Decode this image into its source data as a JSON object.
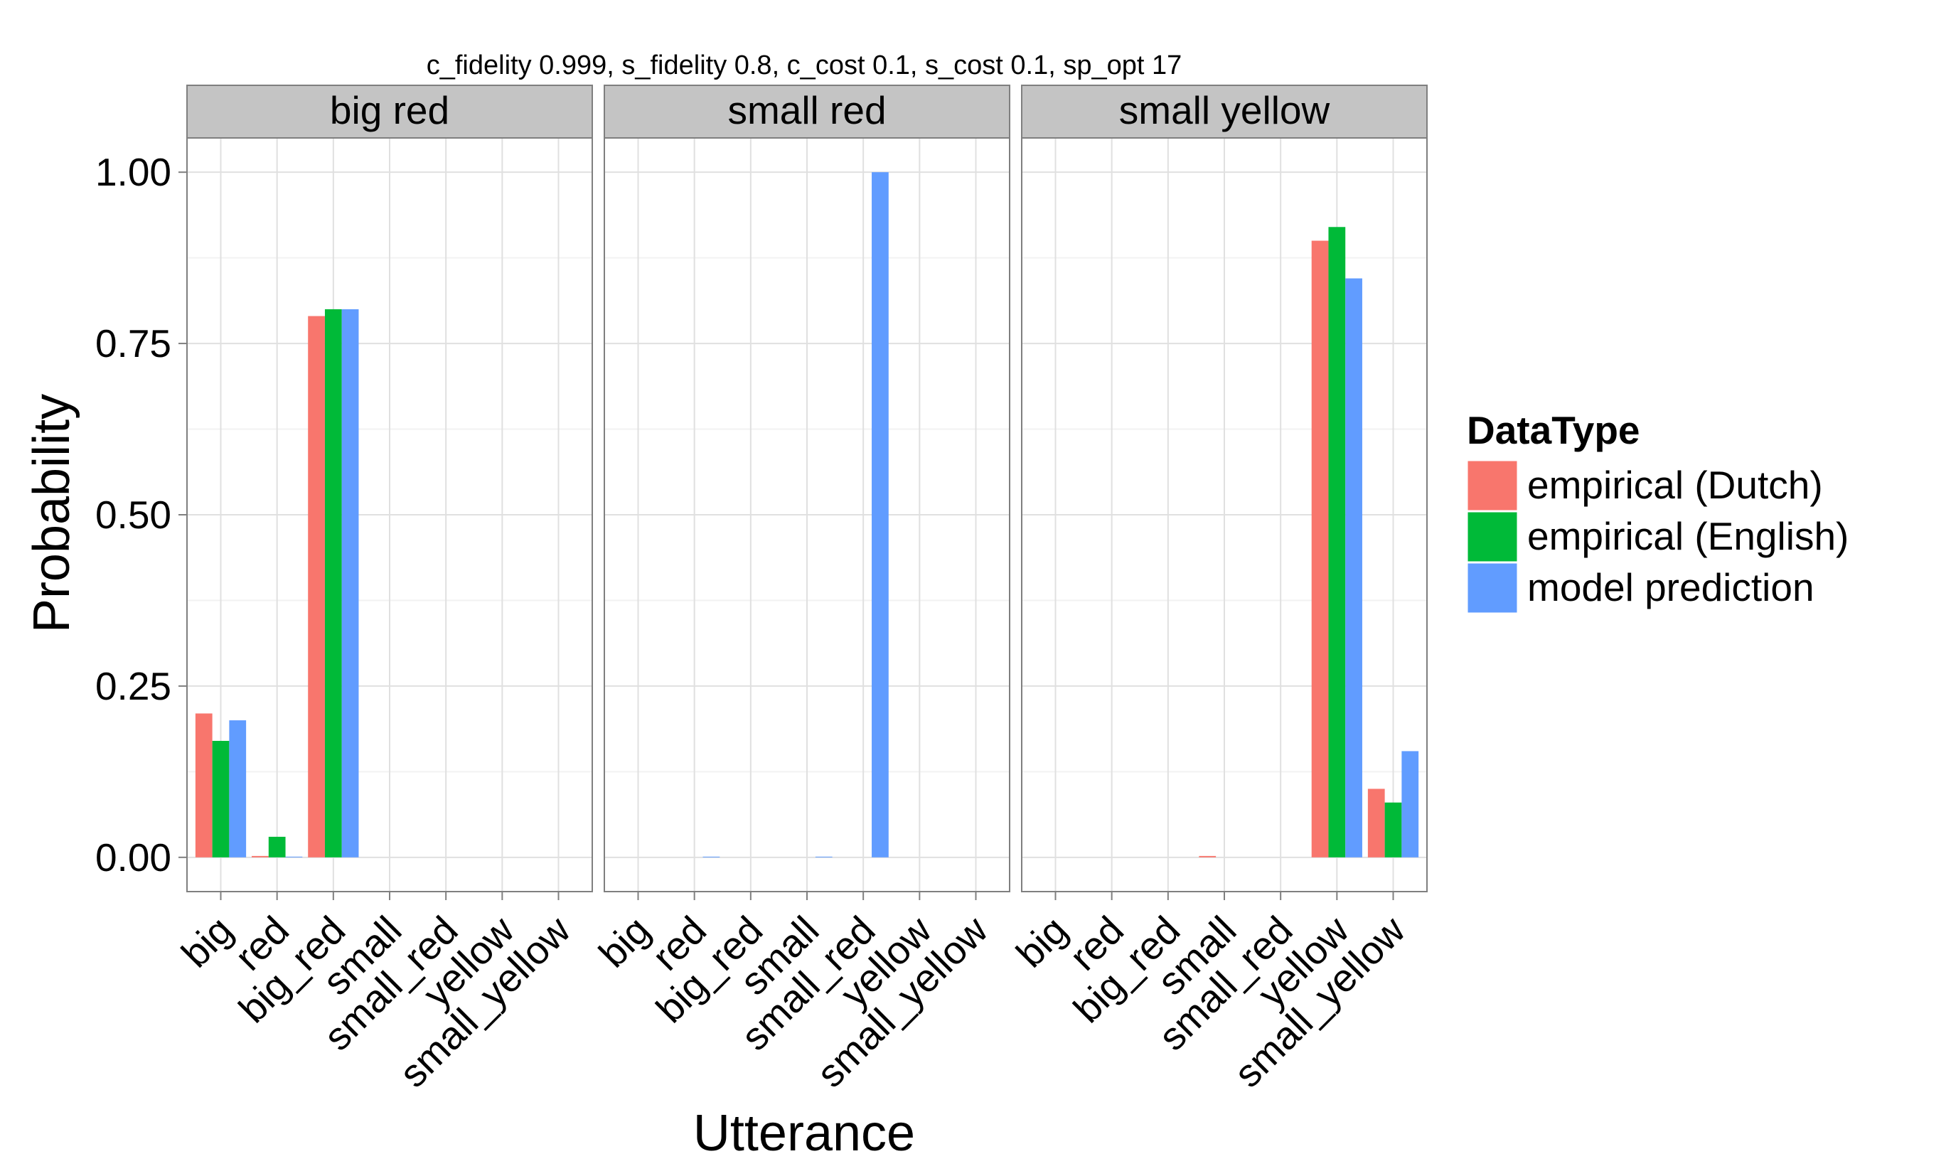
{
  "chart_data": {
    "type": "bar",
    "title": "c_fidelity 0.999, s_fidelity 0.8, c_cost 0.1, s_cost 0.1, sp_opt 17",
    "xlabel": "Utterance",
    "ylabel": "Probability",
    "ylim": [
      -0.05,
      1.05
    ],
    "yticks": [
      "0.00",
      "0.25",
      "0.50",
      "0.75",
      "1.00"
    ],
    "ytick_values": [
      0,
      0.25,
      0.5,
      0.75,
      1.0
    ],
    "grid": true,
    "legend": {
      "title": "DataType",
      "position": "right",
      "entries": [
        "empirical (Dutch)",
        "empirical (English)",
        "model prediction"
      ]
    },
    "colors": [
      "#F8766D",
      "#00BA38",
      "#619CFF"
    ],
    "categories": [
      "big",
      "red",
      "big_red",
      "small",
      "small_red",
      "yellow",
      "small_yellow"
    ],
    "panels": [
      {
        "name": "big red",
        "series": [
          {
            "name": "empirical (Dutch)",
            "values": [
              0.21,
              0.002,
              0.79,
              0,
              0,
              0,
              0
            ]
          },
          {
            "name": "empirical (English)",
            "values": [
              0.17,
              0.03,
              0.8,
              0,
              0,
              0,
              0
            ]
          },
          {
            "name": "model prediction",
            "values": [
              0.2,
              0.001,
              0.8,
              0,
              0,
              0,
              0
            ]
          }
        ]
      },
      {
        "name": "small red",
        "series": [
          {
            "name": "empirical (Dutch)",
            "values": [
              0,
              0,
              0,
              0,
              0,
              0,
              0
            ]
          },
          {
            "name": "empirical (English)",
            "values": [
              0,
              0,
              0,
              0,
              0,
              0,
              0
            ]
          },
          {
            "name": "model prediction",
            "values": [
              0,
              0.001,
              0,
              0.001,
              1.0,
              0,
              0
            ]
          }
        ]
      },
      {
        "name": "small yellow",
        "series": [
          {
            "name": "empirical (Dutch)",
            "values": [
              0,
              0,
              0,
              0.002,
              0,
              0.9,
              0.1
            ]
          },
          {
            "name": "empirical (English)",
            "values": [
              0,
              0,
              0,
              0,
              0,
              0.92,
              0.08
            ]
          },
          {
            "name": "model prediction",
            "values": [
              0,
              0,
              0,
              0,
              0,
              0.845,
              0.155
            ]
          }
        ]
      }
    ]
  }
}
